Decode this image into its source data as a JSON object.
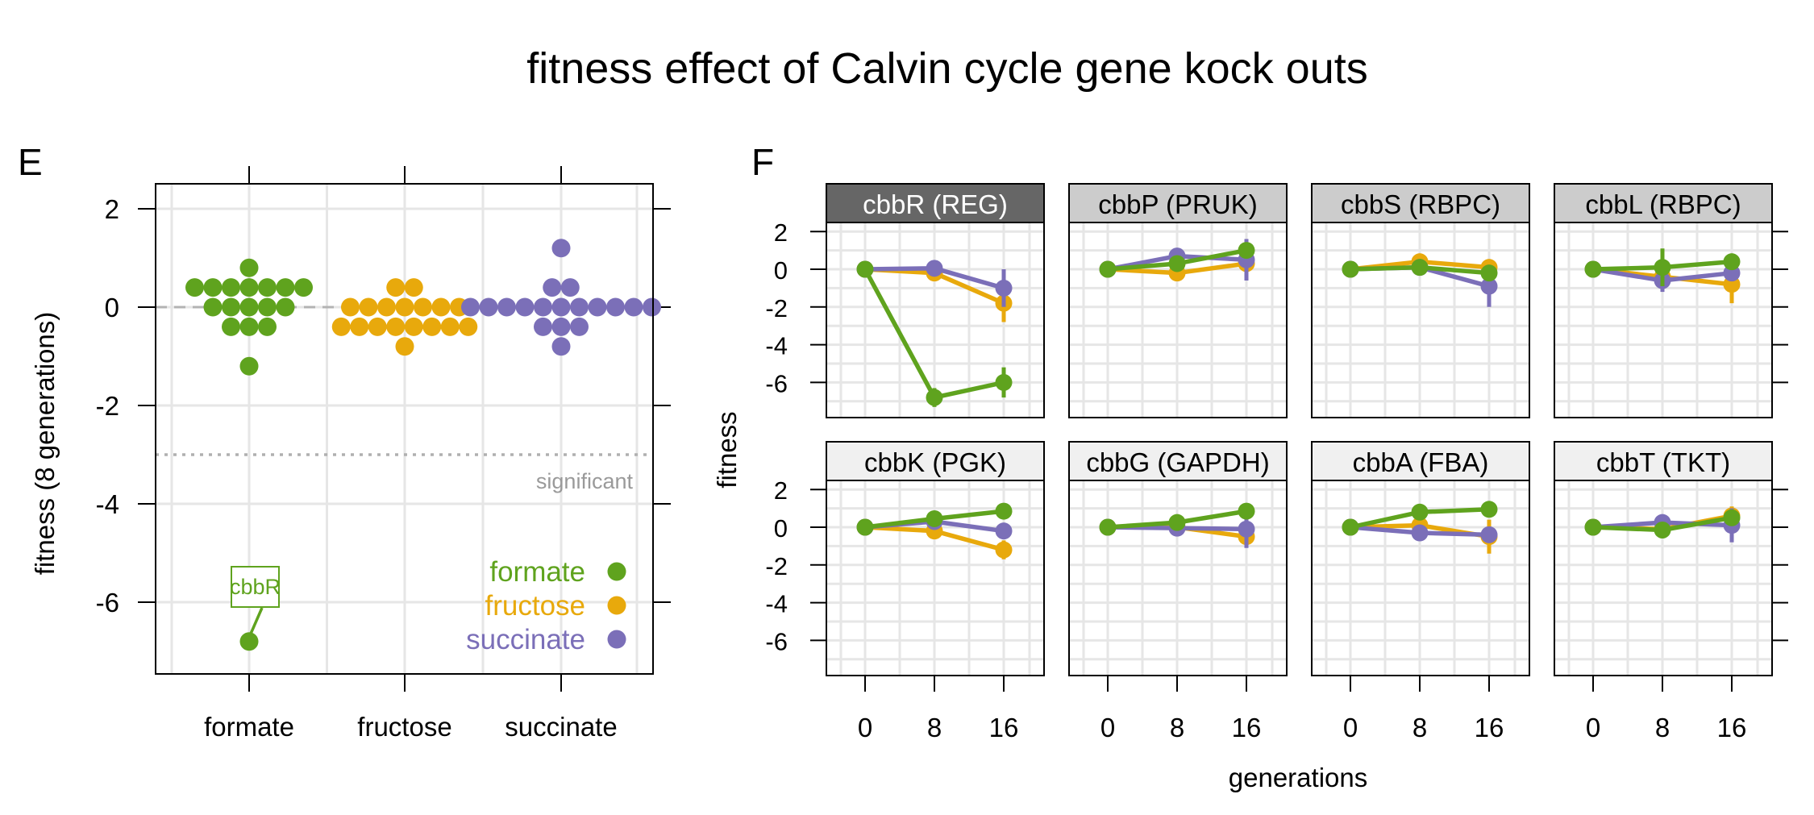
{
  "title": "fitness effect of Calvin cycle gene kock outs",
  "colors": {
    "formate": "#5fa31e",
    "fructose": "#e8a90c",
    "succinate": "#7b6fb8",
    "grid": "#e6e6e6",
    "zero_line": "#b3b3b3",
    "sig_line": "#b0b0b0",
    "strip_dark": "#666666",
    "strip_mid": "#cccccc",
    "strip_light": "#f0f0f0"
  },
  "panel_e": {
    "letter": "E",
    "significance_label": "significant",
    "highlight_label": "cbbR"
  },
  "panel_f": {
    "letter": "F"
  },
  "chart_data": [
    {
      "type": "scatter",
      "subtype": "dot-strip",
      "categories": [
        "formate",
        "fructose",
        "succinate"
      ],
      "ylabel": "fitness (8 generations)",
      "ylim": [
        -7.5,
        2.5
      ],
      "yticks": [
        2,
        0,
        -2,
        -4,
        -6
      ],
      "reference_lines": [
        {
          "y": 0,
          "style": "dashed"
        },
        {
          "y": -3,
          "style": "dotted",
          "label": "significant"
        }
      ],
      "annotation": {
        "text": "cbbR",
        "category": "formate",
        "y": -6.8
      },
      "legend": {
        "position": "bottom-right",
        "entries": [
          "formate",
          "fructose",
          "succinate"
        ]
      },
      "grid": true,
      "series": [
        {
          "name": "formate",
          "values": [
            0.8,
            0.4,
            0.4,
            0.4,
            0.4,
            0.4,
            0.4,
            0.4,
            0.0,
            0.0,
            0.0,
            0.0,
            0.0,
            -0.4,
            -0.4,
            -0.4,
            -1.2,
            -6.8
          ]
        },
        {
          "name": "fructose",
          "values": [
            0.4,
            0.4,
            0.0,
            0.0,
            0.0,
            0.0,
            0.0,
            0.0,
            0.0,
            -0.4,
            -0.4,
            -0.4,
            -0.4,
            -0.4,
            -0.4,
            -0.4,
            -0.4,
            -0.8
          ]
        },
        {
          "name": "succinate",
          "values": [
            1.2,
            0.4,
            0.4,
            0.0,
            0.0,
            0.0,
            0.0,
            0.0,
            0.0,
            0.0,
            0.0,
            0.0,
            0.0,
            0.0,
            -0.4,
            -0.4,
            -0.4,
            -0.8
          ]
        }
      ]
    },
    {
      "type": "line",
      "xlabel": "generations",
      "ylabel": "fitness",
      "x": [
        0,
        8,
        16
      ],
      "ylim": [
        -7.8,
        2.5
      ],
      "yticks": [
        2,
        0,
        -2,
        -4,
        -6
      ],
      "grid": true,
      "panels": [
        {
          "label": "cbbR (REG)",
          "strip": "dark",
          "series": [
            {
              "name": "fructose",
              "values": [
                0,
                -0.2,
                -1.8
              ],
              "err": [
                0,
                0.2,
                1.0
              ]
            },
            {
              "name": "succinate",
              "values": [
                0,
                0.05,
                -1.0
              ],
              "err": [
                0,
                0.15,
                1.0
              ]
            },
            {
              "name": "formate",
              "values": [
                0,
                -6.8,
                -6.0
              ],
              "err": [
                0,
                0.5,
                0.8
              ]
            }
          ]
        },
        {
          "label": "cbbP (PRUK)",
          "strip": "mid",
          "series": [
            {
              "name": "fructose",
              "values": [
                0,
                -0.2,
                0.3
              ],
              "err": [
                0,
                0.2,
                0.4
              ]
            },
            {
              "name": "succinate",
              "values": [
                0,
                0.7,
                0.5
              ],
              "err": [
                0,
                0.3,
                1.1
              ]
            },
            {
              "name": "formate",
              "values": [
                0,
                0.3,
                1.0
              ],
              "err": [
                0,
                0.2,
                0.4
              ]
            }
          ]
        },
        {
          "label": "cbbS (RBPC)",
          "strip": "mid",
          "series": [
            {
              "name": "fructose",
              "values": [
                0,
                0.4,
                0.1
              ],
              "err": [
                0,
                0.2,
                0.3
              ]
            },
            {
              "name": "succinate",
              "values": [
                0,
                0.1,
                -0.9
              ],
              "err": [
                0,
                0.2,
                1.1
              ]
            },
            {
              "name": "formate",
              "values": [
                0,
                0.1,
                -0.2
              ],
              "err": [
                0,
                0.2,
                0.3
              ]
            }
          ]
        },
        {
          "label": "cbbL (RBPC)",
          "strip": "mid",
          "series": [
            {
              "name": "fructose",
              "values": [
                0,
                -0.4,
                -0.8
              ],
              "err": [
                0,
                0.3,
                1.0
              ]
            },
            {
              "name": "succinate",
              "values": [
                0,
                -0.6,
                -0.2
              ],
              "err": [
                0,
                0.6,
                0.4
              ]
            },
            {
              "name": "formate",
              "values": [
                0,
                0.1,
                0.4
              ],
              "err": [
                0,
                1.0,
                0.3
              ]
            }
          ]
        },
        {
          "label": "cbbK (PGK)",
          "strip": "light",
          "series": [
            {
              "name": "fructose",
              "values": [
                0,
                -0.2,
                -1.2
              ],
              "err": [
                0,
                0.2,
                0.5
              ]
            },
            {
              "name": "succinate",
              "values": [
                0,
                0.3,
                -0.2
              ],
              "err": [
                0,
                0.2,
                0.4
              ]
            },
            {
              "name": "formate",
              "values": [
                0,
                0.45,
                0.85
              ],
              "err": [
                0,
                0.2,
                0.3
              ]
            }
          ]
        },
        {
          "label": "cbbG (GAPDH)",
          "strip": "light",
          "series": [
            {
              "name": "fructose",
              "values": [
                0,
                0.0,
                -0.5
              ],
              "err": [
                0,
                0.2,
                0.3
              ]
            },
            {
              "name": "succinate",
              "values": [
                0,
                -0.05,
                -0.1
              ],
              "err": [
                0,
                0.2,
                1.0
              ]
            },
            {
              "name": "formate",
              "values": [
                0,
                0.25,
                0.85
              ],
              "err": [
                0,
                0.2,
                0.3
              ]
            }
          ]
        },
        {
          "label": "cbbA (FBA)",
          "strip": "light",
          "series": [
            {
              "name": "fructose",
              "values": [
                0,
                0.1,
                -0.5
              ],
              "err": [
                0,
                0.2,
                0.9
              ]
            },
            {
              "name": "succinate",
              "values": [
                0,
                -0.3,
                -0.4
              ],
              "err": [
                0,
                0.2,
                0.4
              ]
            },
            {
              "name": "formate",
              "values": [
                0,
                0.8,
                0.95
              ],
              "err": [
                0,
                0.2,
                0.2
              ]
            }
          ]
        },
        {
          "label": "cbbT (TKT)",
          "strip": "light",
          "series": [
            {
              "name": "fructose",
              "values": [
                0,
                -0.1,
                0.6
              ],
              "err": [
                0,
                0.2,
                0.5
              ]
            },
            {
              "name": "succinate",
              "values": [
                0,
                0.25,
                0.1
              ],
              "err": [
                0,
                0.2,
                0.9
              ]
            },
            {
              "name": "formate",
              "values": [
                0,
                -0.15,
                0.5
              ],
              "err": [
                0,
                0.2,
                0.3
              ]
            }
          ]
        }
      ]
    }
  ]
}
